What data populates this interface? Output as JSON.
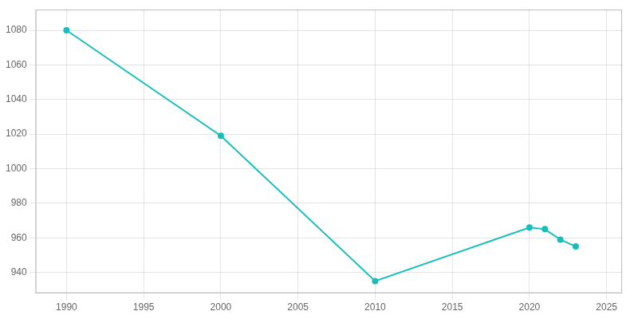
{
  "chart_data": {
    "type": "line",
    "x": [
      1990,
      2000,
      2010,
      2020,
      2021,
      2022,
      2023
    ],
    "values": [
      1080,
      1019,
      935,
      966,
      965,
      959,
      955
    ],
    "color": "#17BEBB",
    "marker": "circle",
    "xlim": [
      1988,
      2026
    ],
    "ylim": [
      928,
      1092
    ],
    "xticks": [
      1990,
      1995,
      2000,
      2005,
      2010,
      2015,
      2020,
      2025
    ],
    "yticks": [
      940,
      960,
      980,
      1000,
      1020,
      1040,
      1060,
      1080
    ],
    "grid": true
  }
}
